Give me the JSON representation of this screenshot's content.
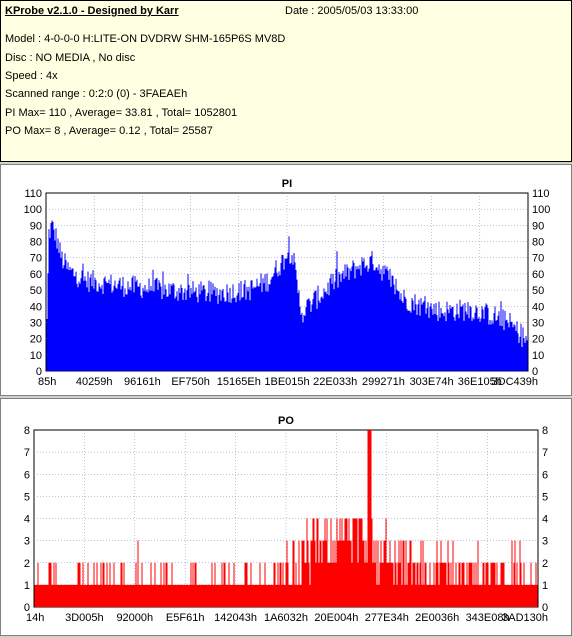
{
  "header": {
    "title": "KProbe v2.1.0 - Designed by Karr",
    "date": "Date : 2005/05/03 13:33:00",
    "model": "Model : 4-0-0-0 H:LITE-ON DVDRW SHM-165P6S MV8D",
    "disc": "Disc : NO MEDIA , No disc",
    "speed": "Speed : 4x",
    "scanned_range": "Scanned range : 0:2:0 (0) - 3FAEAEh",
    "pi_summary": "PI Max= 110 , Average= 33.81 , Total= 1052801",
    "po_summary": "PO Max= 8 , Average= 0.12 , Total= 25587"
  },
  "colors": {
    "pi": "#0000ff",
    "po": "#ff0000",
    "plot_bg": "#ffffff",
    "grid": "#8080c0"
  },
  "chart_data": [
    {
      "type": "bar",
      "title": "PI",
      "ylim": [
        0,
        110
      ],
      "yticks": [
        0,
        10,
        20,
        30,
        40,
        50,
        60,
        70,
        80,
        90,
        100,
        110
      ],
      "xtick_labels": [
        "85h",
        "40259h",
        "96161h",
        "EF750h",
        "15165Eh",
        "1BE015h",
        "22E033h",
        "299271h",
        "303E74h",
        "36E105h",
        "3DC439h"
      ],
      "grid": true,
      "profile_x": [
        0,
        0.004,
        0.01,
        0.02,
        0.03,
        0.045,
        0.08,
        0.15,
        0.25,
        0.35,
        0.42,
        0.46,
        0.5,
        0.51,
        0.52,
        0.53,
        0.55,
        0.6,
        0.65,
        0.68,
        0.71,
        0.74,
        0.78,
        0.82,
        0.88,
        0.93,
        0.96,
        1.0
      ],
      "profile_y": [
        30,
        85,
        90,
        82,
        70,
        62,
        56,
        53,
        50,
        48,
        50,
        56,
        72,
        74,
        52,
        36,
        42,
        56,
        65,
        68,
        58,
        45,
        40,
        37,
        38,
        34,
        30,
        18
      ]
    },
    {
      "type": "bar",
      "title": "PO",
      "ylim": [
        0,
        8
      ],
      "yticks": [
        0,
        1,
        2,
        3,
        4,
        5,
        6,
        7,
        8
      ],
      "xtick_labels": [
        "14h",
        "3D005h",
        "92000h",
        "E5F61h",
        "142043h",
        "1A6032h",
        "20E004h",
        "277E34h",
        "2E0036h",
        "343E08h",
        "3AD130h"
      ],
      "grid": true,
      "profile_x": [
        0,
        0.05,
        0.3,
        0.45,
        0.5,
        0.52,
        0.6,
        0.66,
        0.7,
        0.75,
        0.85,
        0.95,
        1.0
      ],
      "profile_y": [
        1,
        1.3,
        1.1,
        1.2,
        1.4,
        2.0,
        3.2,
        3.0,
        2.1,
        1.6,
        1.5,
        1.4,
        1.2
      ]
    }
  ]
}
